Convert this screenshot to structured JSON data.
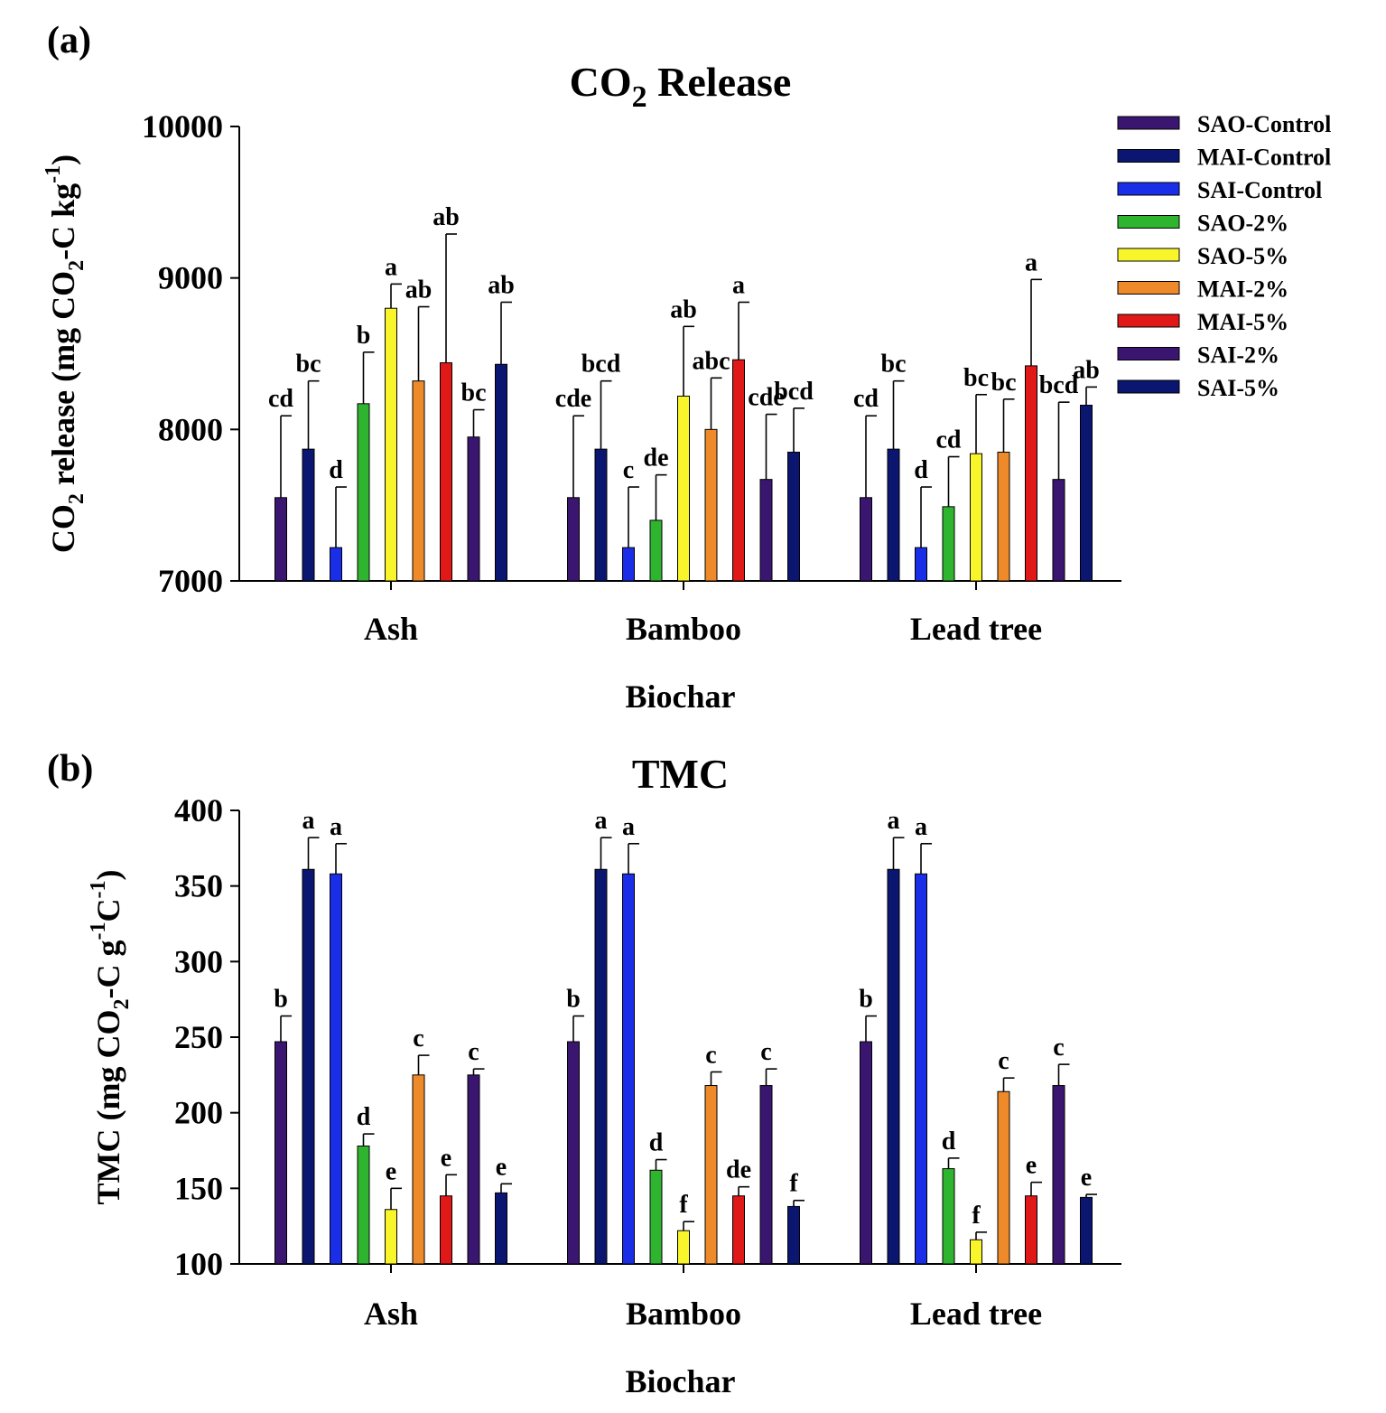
{
  "legend": {
    "items": [
      {
        "name": "SAO-Control",
        "color": "#3a1670"
      },
      {
        "name": "MAI-Control",
        "color": "#0a1670"
      },
      {
        "name": "SAI-Control",
        "color": "#1a2ee8"
      },
      {
        "name": "SAO-2%",
        "color": "#2fb42f"
      },
      {
        "name": "SAO-5%",
        "color": "#f8f62a"
      },
      {
        "name": "MAI-2%",
        "color": "#ee8a2a"
      },
      {
        "name": "MAI-5%",
        "color": "#e01818"
      },
      {
        "name": "SAI-2%",
        "color": "#3a1670"
      },
      {
        "name": "SAI-5%",
        "color": "#0a1670"
      }
    ]
  },
  "chart_data": [
    {
      "type": "bar",
      "panel": "(a)",
      "title_main": "CO",
      "title_sub": "2",
      "title_rest": " Release",
      "ylabel_parts": [
        "CO",
        "2",
        " release (mg CO",
        "2",
        "-C kg",
        "-1",
        ")"
      ],
      "xlabel": "Biochar",
      "ylim": [
        7000,
        10000
      ],
      "yticks": [
        7000,
        8000,
        9000,
        10000
      ],
      "categories": [
        "Ash",
        "Bamboo",
        "Lead tree"
      ],
      "series": [
        {
          "name": "SAO-Control",
          "values": [
            7550,
            7550,
            7550
          ],
          "errors": [
            540,
            540,
            540
          ],
          "letters": [
            "cd",
            "cde",
            "cd"
          ]
        },
        {
          "name": "MAI-Control",
          "values": [
            7870,
            7870,
            7870
          ],
          "errors": [
            450,
            450,
            450
          ],
          "letters": [
            "bc",
            "bcd",
            "bc"
          ]
        },
        {
          "name": "SAI-Control",
          "values": [
            7220,
            7220,
            7220
          ],
          "errors": [
            400,
            400,
            400
          ],
          "letters": [
            "d",
            "c",
            "d"
          ]
        },
        {
          "name": "SAO-2%",
          "values": [
            8170,
            7400,
            7490
          ],
          "errors": [
            340,
            300,
            330
          ],
          "letters": [
            "b",
            "de",
            "cd"
          ]
        },
        {
          "name": "SAO-5%",
          "values": [
            8800,
            8220,
            7840
          ],
          "errors": [
            160,
            460,
            390
          ],
          "letters": [
            "a",
            "ab",
            "bc"
          ]
        },
        {
          "name": "MAI-2%",
          "values": [
            8320,
            8000,
            7850
          ],
          "errors": [
            490,
            340,
            350
          ],
          "letters": [
            "ab",
            "abc",
            "bc"
          ]
        },
        {
          "name": "MAI-5%",
          "values": [
            8440,
            8460,
            8420
          ],
          "errors": [
            850,
            380,
            570
          ],
          "letters": [
            "ab",
            "a",
            "a"
          ]
        },
        {
          "name": "SAI-2%",
          "values": [
            7950,
            7670,
            7670
          ],
          "errors": [
            180,
            430,
            510
          ],
          "letters": [
            "bc",
            "cde",
            "bcd"
          ]
        },
        {
          "name": "SAI-5%",
          "values": [
            8430,
            7850,
            8160
          ],
          "errors": [
            410,
            290,
            120
          ],
          "letters": [
            "ab",
            "bcd",
            "ab"
          ]
        }
      ]
    },
    {
      "type": "bar",
      "panel": "(b)",
      "title_main": "TMC",
      "title_sub": "",
      "title_rest": "",
      "ylabel_parts": [
        "TMC (mg CO",
        "2",
        "-C g",
        "-1",
        "C",
        "-1",
        ")"
      ],
      "xlabel": "Biochar",
      "ylim": [
        100,
        400
      ],
      "yticks": [
        100,
        150,
        200,
        250,
        300,
        350,
        400
      ],
      "categories": [
        "Ash",
        "Bamboo",
        "Lead tree"
      ],
      "series": [
        {
          "name": "SAO-Control",
          "values": [
            247,
            247,
            247
          ],
          "errors": [
            17,
            17,
            17
          ],
          "letters": [
            "b",
            "b",
            "b"
          ]
        },
        {
          "name": "MAI-Control",
          "values": [
            361,
            361,
            361
          ],
          "errors": [
            21,
            21,
            21
          ],
          "letters": [
            "a",
            "a",
            "a"
          ]
        },
        {
          "name": "SAI-Control",
          "values": [
            358,
            358,
            358
          ],
          "errors": [
            20,
            20,
            20
          ],
          "letters": [
            "a",
            "a",
            "a"
          ]
        },
        {
          "name": "SAO-2%",
          "values": [
            178,
            162,
            163
          ],
          "errors": [
            8,
            7,
            7
          ],
          "letters": [
            "d",
            "d",
            "d"
          ]
        },
        {
          "name": "SAO-5%",
          "values": [
            136,
            122,
            116
          ],
          "errors": [
            14,
            6,
            5
          ],
          "letters": [
            "e",
            "f",
            "f"
          ]
        },
        {
          "name": "MAI-2%",
          "values": [
            225,
            218,
            214
          ],
          "errors": [
            13,
            9,
            9
          ],
          "letters": [
            "c",
            "c",
            "c"
          ]
        },
        {
          "name": "MAI-5%",
          "values": [
            145,
            145,
            145
          ],
          "errors": [
            14,
            6,
            9
          ],
          "letters": [
            "e",
            "de",
            "e"
          ]
        },
        {
          "name": "SAI-2%",
          "values": [
            225,
            218,
            218
          ],
          "errors": [
            4,
            11,
            14
          ],
          "letters": [
            "c",
            "c",
            "c"
          ]
        },
        {
          "name": "SAI-5%",
          "values": [
            147,
            138,
            144
          ],
          "errors": [
            6,
            4,
            2
          ],
          "letters": [
            "e",
            "f",
            "e"
          ]
        }
      ]
    }
  ]
}
